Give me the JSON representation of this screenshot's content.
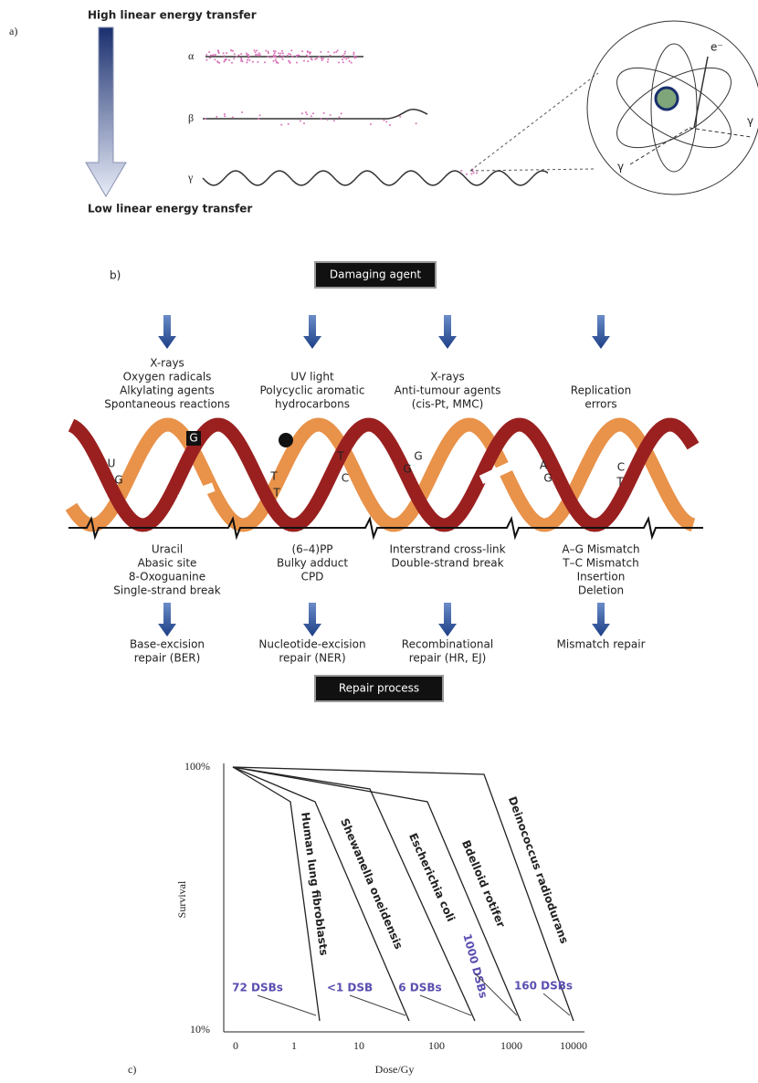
{
  "panel_a": {
    "label": "a)",
    "high": "High linear energy transfer",
    "low": "Low linear energy transfer",
    "radiation": [
      "α",
      "β",
      "γ"
    ],
    "atom_labels": [
      "e⁻",
      "γ",
      "γ"
    ]
  },
  "panel_b": {
    "label": "b)",
    "damaging_agent": "Damaging agent",
    "agents": [
      [
        "X-rays",
        "Oxygen radicals",
        "Alkylating agents",
        "Spontaneous reactions"
      ],
      [
        "UV light",
        "Polycyclic aromatic",
        "hydrocarbons"
      ],
      [
        "X-rays",
        "Anti-tumour agents",
        "(cis-Pt, MMC)"
      ],
      [
        "Replication",
        "errors"
      ]
    ],
    "helix_labels": [
      "U",
      "G",
      "G",
      "T",
      "T",
      "T",
      "C",
      "G",
      "G",
      "A",
      "G",
      "C",
      "T"
    ],
    "lesions": [
      [
        "Uracil",
        "Abasic site",
        "8-Oxoguanine",
        "Single-strand break"
      ],
      [
        "(6–4)PP",
        "Bulky adduct",
        "CPD"
      ],
      [
        "Interstrand cross-link",
        "Double-strand break"
      ],
      [
        "A–G Mismatch",
        "T–C Mismatch",
        "Insertion",
        "Deletion"
      ]
    ],
    "repairs": [
      [
        "Base-excision",
        "repair (BER)"
      ],
      [
        "Nucleotide-excision",
        "repair (NER)"
      ],
      [
        "Recombinational",
        "repair (HR, EJ)"
      ],
      [
        "Mismatch repair"
      ]
    ],
    "repair_process": "Repair process"
  },
  "panel_c": {
    "label": "c)",
    "y_label": "Survival",
    "x_label": "Dose/Gy",
    "yticks": [
      "100%",
      "10%"
    ],
    "xticks": [
      "0",
      "1",
      "10",
      "100",
      "1000",
      "10000"
    ],
    "species": [
      "Human lung fibroblasts",
      "Shewanella oneidensis",
      "Escherichia coli",
      "Bdelloid rotifer",
      "Deinococcus radiodurans"
    ],
    "dsb_labels": [
      "72 DSBs",
      "<1 DSB",
      "6 DSBs",
      "1000 DSBs",
      "160 DSBs"
    ]
  }
}
